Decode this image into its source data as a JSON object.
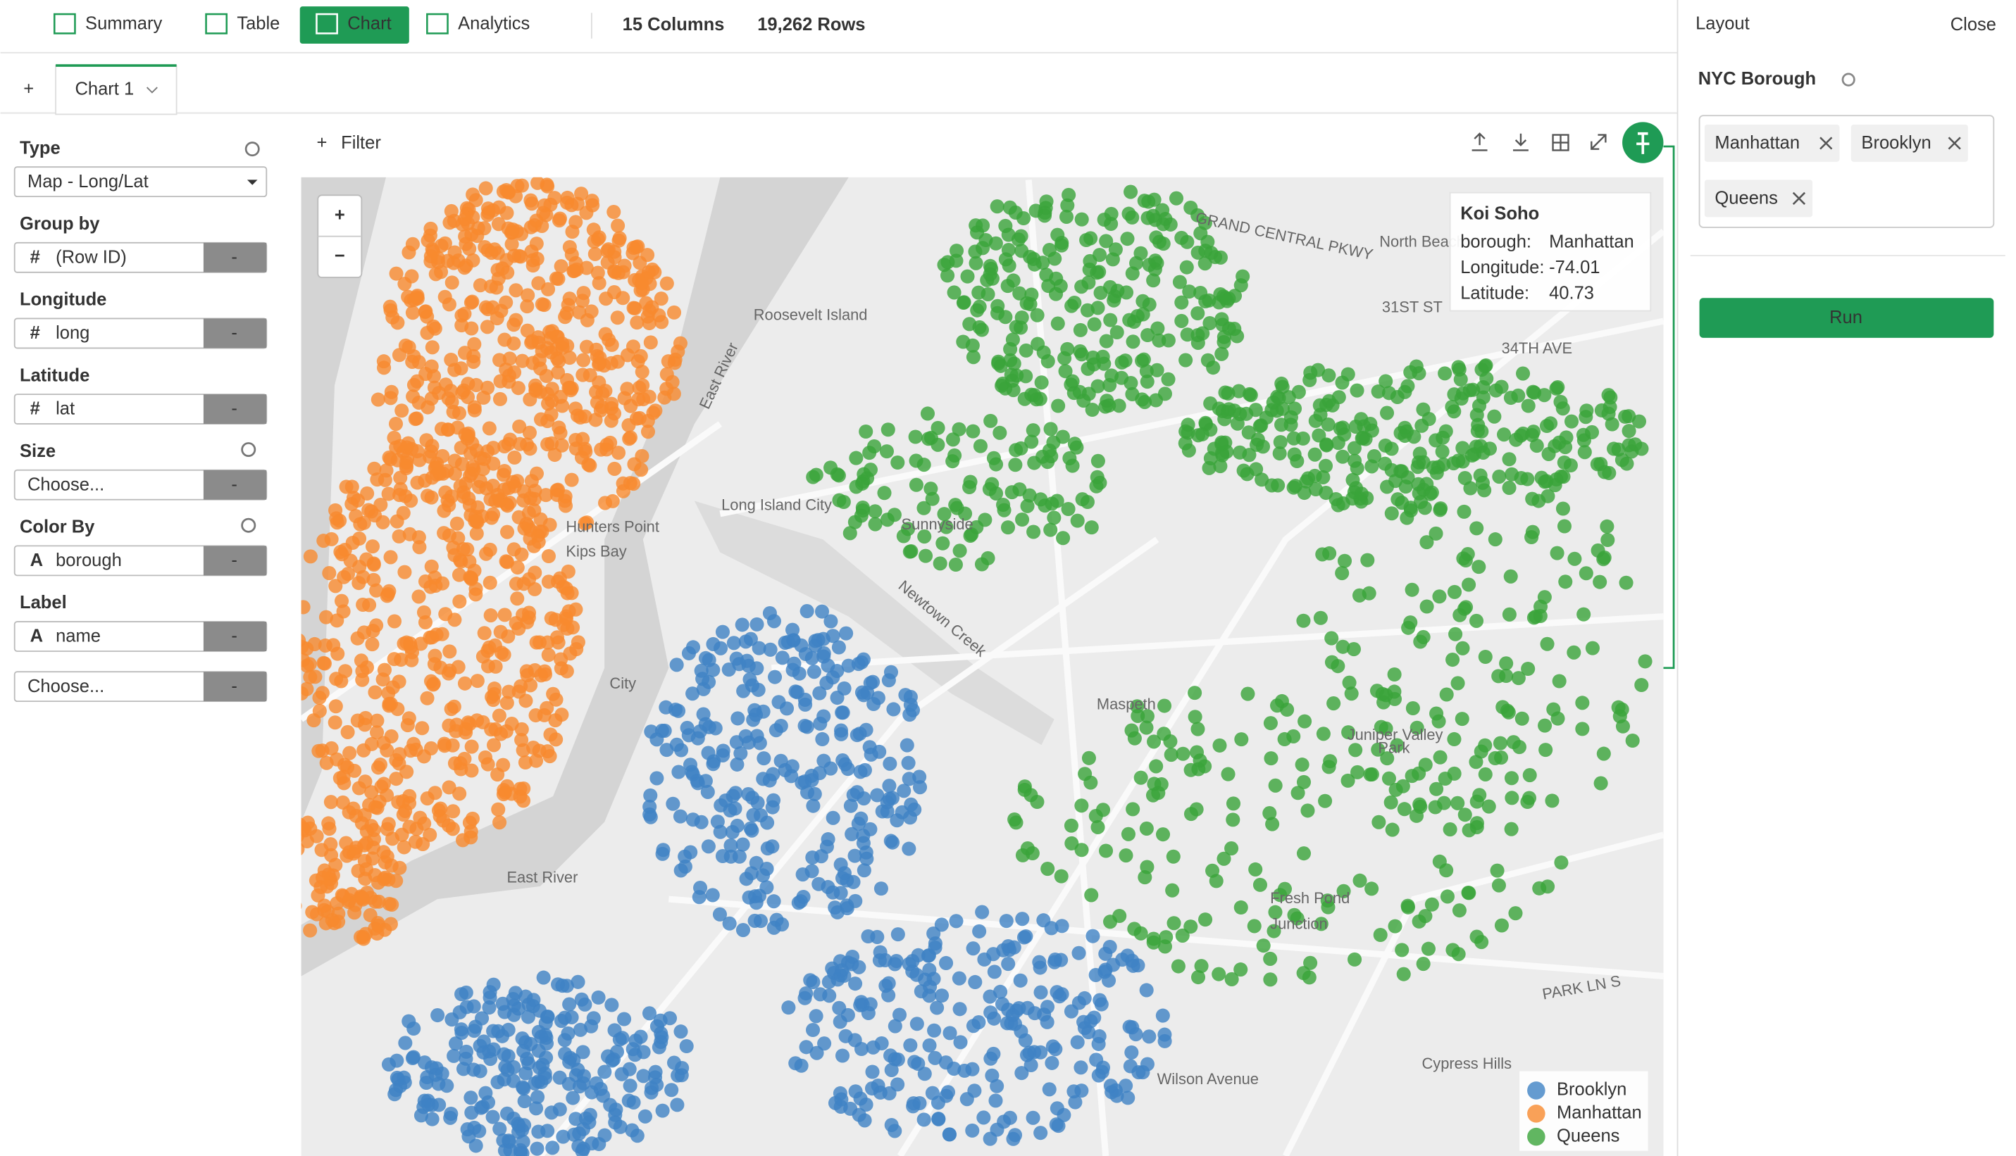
{
  "toolbar": {
    "tabs": [
      "Summary",
      "Table",
      "Chart",
      "Analytics"
    ],
    "columns": "15 Columns",
    "rows": "19,262 Rows"
  },
  "chart_tab": {
    "add": "+",
    "label": "Chart 1"
  },
  "settings": {
    "remove": "-",
    "fields": [
      {
        "label": "Type",
        "value": "Map - Long/Lat"
      },
      {
        "label": "Group by",
        "icon": "#",
        "value": "(Row ID)"
      },
      {
        "label": "Longitude",
        "icon": "#",
        "value": "long"
      },
      {
        "label": "Latitude",
        "icon": "#",
        "value": "lat"
      },
      {
        "label": "Size",
        "value": "Choose..."
      },
      {
        "label": "Color By",
        "icon": "A",
        "value": "borough"
      },
      {
        "label": "Label",
        "icon": "A",
        "value": "name"
      }
    ],
    "extra": "Choose..."
  },
  "filter": "Filter",
  "map": {
    "zoom_in": "+",
    "zoom_out": "−",
    "places": [
      "Roosevelt Island",
      "East River",
      "Long Island City",
      "Sunnyside",
      "Newtown Creek",
      "Maspeth",
      "Juniper Valley",
      "Park",
      "Fresh Pond",
      "Junction",
      "East River",
      "Cypress Hills",
      "Wilson Avenue",
      "PARK LN S",
      "34TH AVE",
      "31ST ST",
      "Hunters Point",
      "North Beach",
      "GRAND CENTRAL PKWY",
      "City",
      "Kips Bay"
    ]
  },
  "tooltip": {
    "title": "Koi Soho",
    "rows": [
      {
        "key": "borough:",
        "value": "Manhattan"
      },
      {
        "key": "Longitude:",
        "value": -74.01
      },
      {
        "key": "Latitude:",
        "value": 40.73
      }
    ]
  },
  "legend": [
    {
      "name": "Brooklyn",
      "color": "#3f82c4"
    },
    {
      "name": "Manhattan",
      "color": "#f7892e"
    },
    {
      "name": "Queens",
      "color": "#3aa43a"
    }
  ],
  "layout_panel": {
    "title": "Layout",
    "close": "Close",
    "parameter": "NYC Borough",
    "selected": [
      "Manhattan",
      "Brooklyn",
      "Queens"
    ],
    "run": "Run"
  }
}
